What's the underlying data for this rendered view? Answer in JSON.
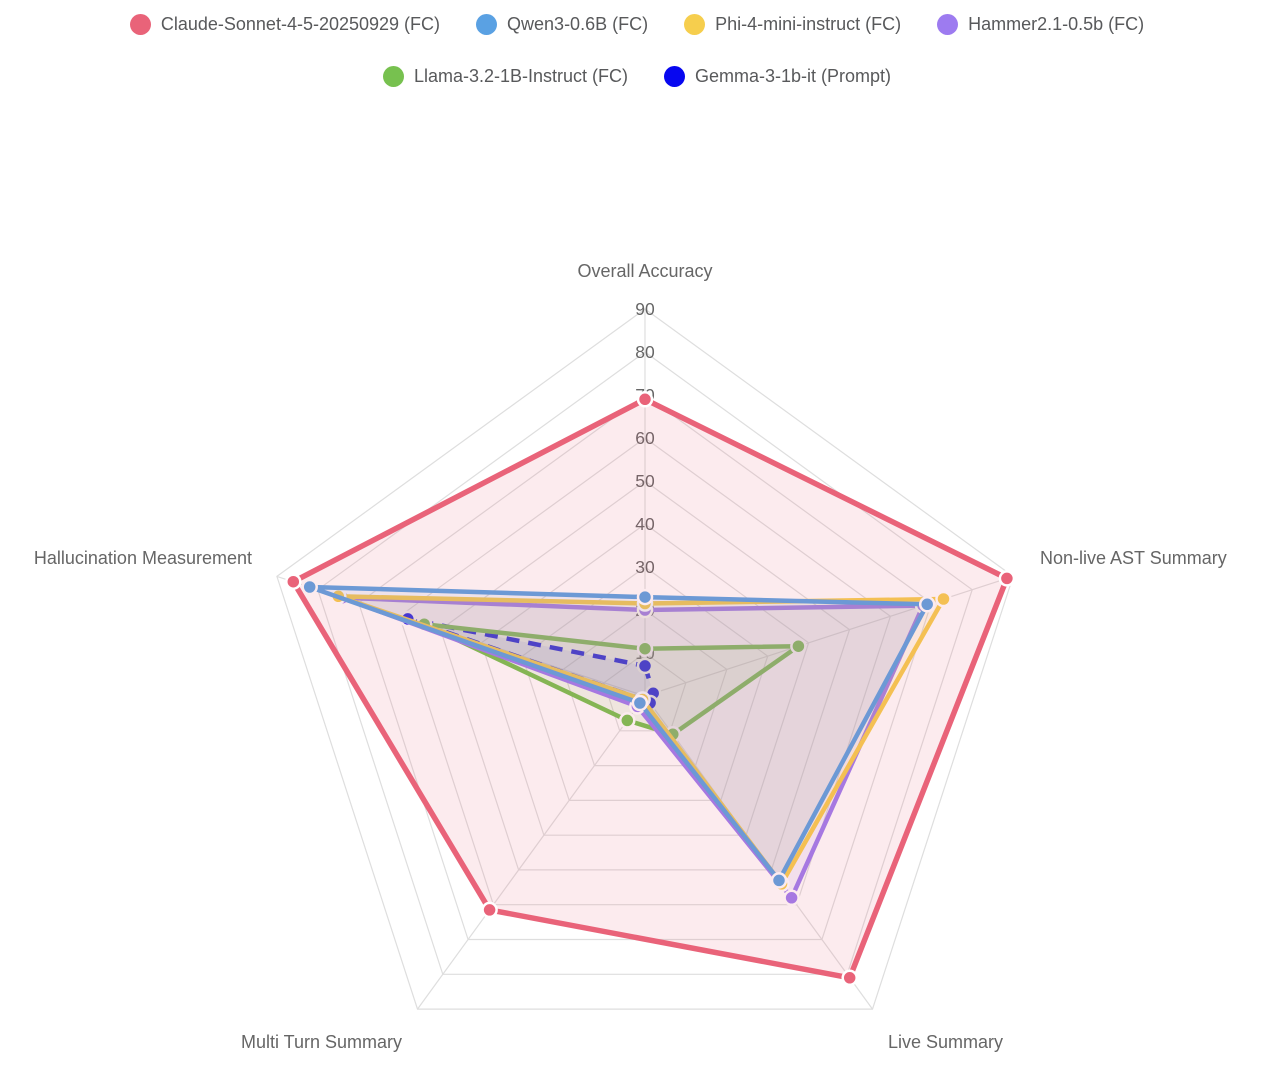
{
  "legend": {
    "rows": [
      4,
      2
    ]
  },
  "chart_data": {
    "type": "radar",
    "axes": [
      "Overall Accuracy",
      "Non-live AST Summary",
      "Live Summary",
      "Multi Turn Summary",
      "Hallucination Measurement"
    ],
    "scale": {
      "min": 0,
      "max": 90,
      "tick_step": 10,
      "tick_labels": [
        "10",
        "20",
        "30",
        "40",
        "50",
        "60",
        "70",
        "80",
        "90"
      ]
    },
    "grid": {
      "shape": "polygon",
      "color": "#dedede",
      "rings": 9
    },
    "legend_position": "top",
    "series": [
      {
        "name": "Claude-Sonnet-4-5-20250929 (FC)",
        "color": "#E96379",
        "fill_alpha": 0.13,
        "dash": null,
        "values": [
          69,
          88.5,
          81,
          61.5,
          86
        ]
      },
      {
        "name": "Qwen3-0.6B (FC)",
        "color": "#5AA1E3",
        "fill_alpha": 0.1,
        "dash": null,
        "values": [
          23,
          69,
          53,
          2,
          82
        ]
      },
      {
        "name": "Phi-4-mini-instruct (FC)",
        "color": "#F6CE4D",
        "fill_alpha": 0.1,
        "dash": null,
        "values": [
          21.5,
          73,
          54,
          1,
          75
        ]
      },
      {
        "name": "Hammer2.1-0.5b (FC)",
        "color": "#9D7BF0",
        "fill_alpha": 0.1,
        "dash": null,
        "values": [
          20,
          68,
          58,
          3,
          74
        ]
      },
      {
        "name": "Llama-3.2-1B-Instruct (FC)",
        "color": "#77C14F",
        "fill_alpha": 0.1,
        "dash": null,
        "values": [
          11,
          37.5,
          11,
          7,
          54
        ]
      },
      {
        "name": "Gemma-3-1b-it (Prompt)",
        "color": "#0707F0",
        "fill_alpha": 0.08,
        "dash": [
          13,
          9
        ],
        "values": [
          7,
          2,
          2,
          1,
          58
        ]
      }
    ]
  }
}
